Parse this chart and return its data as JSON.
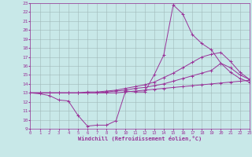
{
  "xlabel": "Windchill (Refroidissement éolien,°C)",
  "background_color": "#c8e8e8",
  "grid_color": "#a0b8b8",
  "line_color": "#993399",
  "xlim": [
    0,
    23
  ],
  "ylim": [
    9,
    23
  ],
  "xticks": [
    0,
    1,
    2,
    3,
    4,
    5,
    6,
    7,
    8,
    9,
    10,
    11,
    12,
    13,
    14,
    15,
    16,
    17,
    18,
    19,
    20,
    21,
    22,
    23
  ],
  "yticks": [
    9,
    10,
    11,
    12,
    13,
    14,
    15,
    16,
    17,
    18,
    19,
    20,
    21,
    22,
    23
  ],
  "series": [
    {
      "x": [
        0,
        1,
        2,
        3,
        4,
        5,
        6,
        7,
        8,
        9,
        10,
        11,
        12,
        13,
        14,
        15,
        16,
        17,
        18,
        19,
        20,
        21,
        22,
        23
      ],
      "y": [
        13.0,
        12.9,
        12.7,
        12.2,
        12.1,
        10.5,
        9.3,
        9.4,
        9.4,
        9.9,
        13.2,
        13.1,
        13.1,
        15.0,
        17.2,
        22.8,
        21.8,
        19.5,
        18.5,
        17.8,
        16.3,
        15.3,
        14.6,
        14.2
      ]
    },
    {
      "x": [
        0,
        1,
        2,
        3,
        4,
        5,
        6,
        7,
        8,
        9,
        10,
        11,
        12,
        13,
        14,
        15,
        16,
        17,
        18,
        19,
        20,
        21,
        22,
        23
      ],
      "y": [
        13.0,
        13.0,
        13.0,
        13.0,
        13.0,
        13.0,
        13.1,
        13.1,
        13.2,
        13.3,
        13.5,
        13.7,
        13.9,
        14.2,
        14.7,
        15.2,
        15.8,
        16.4,
        17.0,
        17.3,
        17.5,
        16.5,
        15.3,
        14.5
      ]
    },
    {
      "x": [
        0,
        1,
        2,
        3,
        4,
        5,
        6,
        7,
        8,
        9,
        10,
        11,
        12,
        13,
        14,
        15,
        16,
        17,
        18,
        19,
        20,
        21,
        22,
        23
      ],
      "y": [
        13.0,
        13.0,
        13.0,
        13.0,
        13.0,
        13.0,
        13.0,
        13.0,
        13.1,
        13.2,
        13.3,
        13.5,
        13.6,
        13.8,
        14.0,
        14.3,
        14.6,
        14.9,
        15.2,
        15.5,
        16.3,
        15.8,
        15.0,
        14.5
      ]
    },
    {
      "x": [
        0,
        1,
        2,
        3,
        4,
        5,
        6,
        7,
        8,
        9,
        10,
        11,
        12,
        13,
        14,
        15,
        16,
        17,
        18,
        19,
        20,
        21,
        22,
        23
      ],
      "y": [
        13.0,
        13.0,
        13.0,
        13.0,
        13.0,
        13.0,
        13.0,
        13.0,
        13.0,
        13.0,
        13.1,
        13.2,
        13.3,
        13.4,
        13.5,
        13.6,
        13.7,
        13.8,
        13.9,
        14.0,
        14.1,
        14.2,
        14.3,
        14.4
      ]
    }
  ]
}
